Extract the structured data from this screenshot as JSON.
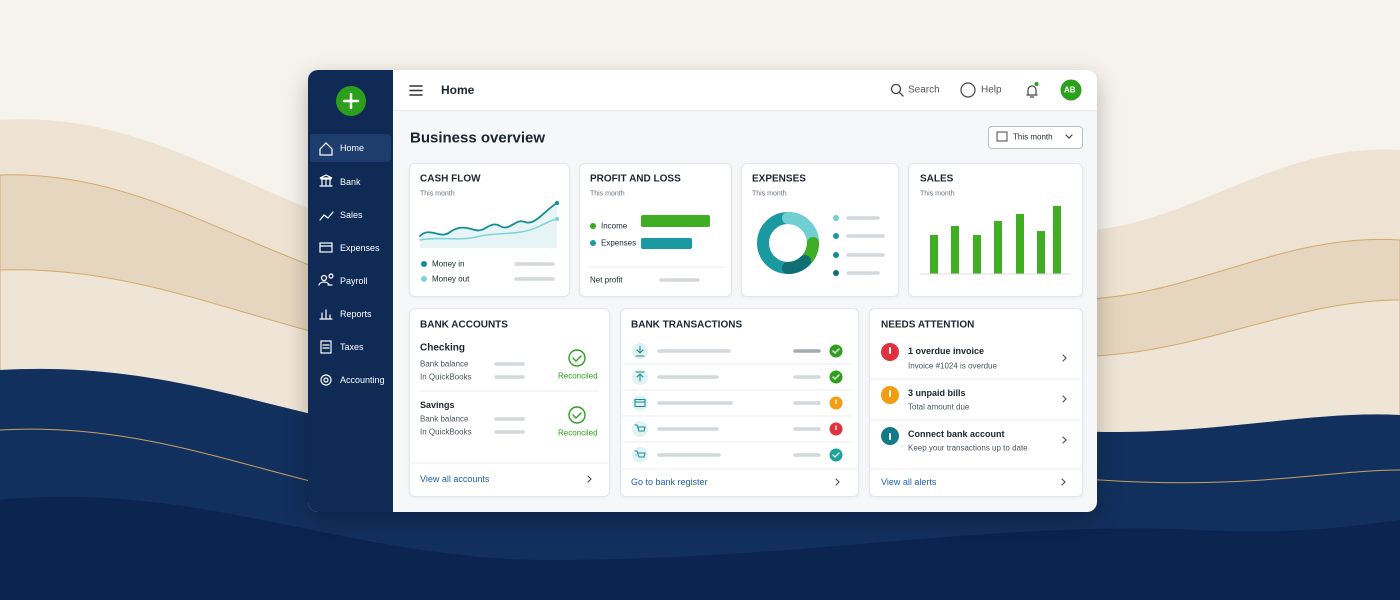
{
  "sidebar": {
    "items": [
      "Home",
      "Bank",
      "Sales",
      "Expenses",
      "Payroll",
      "Reports",
      "Taxes",
      "Accounting"
    ]
  },
  "topbar": {
    "title": "Home",
    "search": "Search",
    "help": "Help",
    "avatar": "AB"
  },
  "overview": {
    "title": "Business overview",
    "period": "This month"
  },
  "cash_flow": {
    "title": "CASH FLOW",
    "subtitle": "This month",
    "legend": [
      "Money in",
      "Money out"
    ]
  },
  "profit_loss": {
    "title": "PROFIT AND LOSS",
    "subtitle": "This month",
    "legend": [
      "Income",
      "Expenses"
    ],
    "footer": "Net profit"
  },
  "expenses": {
    "title": "EXPENSES",
    "subtitle": "This month"
  },
  "sales": {
    "title": "SALES",
    "subtitle": "This month"
  },
  "bank_accounts": {
    "title": "BANK ACCOUNTS",
    "accounts": [
      {
        "name": "Checking",
        "rows": [
          "Bank balance",
          "In QuickBooks"
        ],
        "status": "Reconciled"
      },
      {
        "name": "Savings",
        "rows": [
          "Bank balance",
          "In QuickBooks"
        ],
        "status": "Reconciled"
      }
    ],
    "link": "View all accounts"
  },
  "bank_transactions": {
    "title": "BANK TRANSACTIONS",
    "link": "Go to bank register"
  },
  "needs_attention": {
    "title": "NEEDS ATTENTION",
    "items": [
      {
        "title": "1 overdue invoice",
        "detail": "Invoice #1024 is overdue"
      },
      {
        "title": "3 unpaid bills",
        "detail": "Total amount due"
      },
      {
        "title": "Connect bank account",
        "detail": "Keep your transactions up to date"
      }
    ],
    "link": "View all alerts"
  }
}
